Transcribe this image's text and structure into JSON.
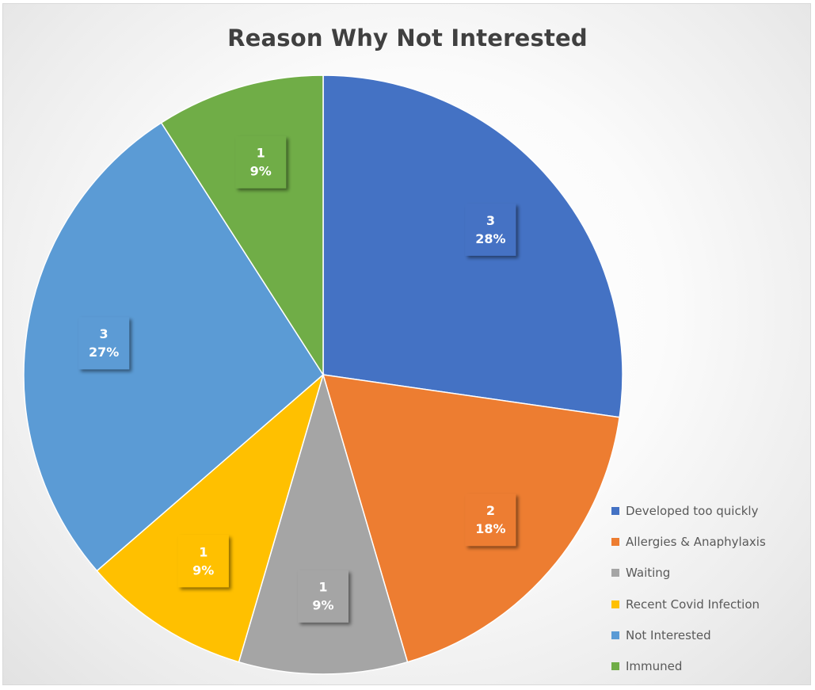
{
  "chart_data": {
    "type": "pie",
    "title": "Reason Why Not Interested",
    "legend_position": "bottom-right",
    "slices": [
      {
        "label": "Developed too quickly",
        "value": 3,
        "percent_label": "28%",
        "color": "#4472C4"
      },
      {
        "label": "Allergies & Anaphylaxis",
        "value": 2,
        "percent_label": "18%",
        "color": "#ED7D31"
      },
      {
        "label": "Waiting",
        "value": 1,
        "percent_label": "9%",
        "color": "#A5A5A5"
      },
      {
        "label": "Recent Covid Infection",
        "value": 1,
        "percent_label": "9%",
        "color": "#FFC000"
      },
      {
        "label": "Not Interested",
        "value": 3,
        "percent_label": "27%",
        "color": "#5B9BD5"
      },
      {
        "label": "Immuned",
        "value": 1,
        "percent_label": "9%",
        "color": "#70AD47"
      }
    ]
  }
}
